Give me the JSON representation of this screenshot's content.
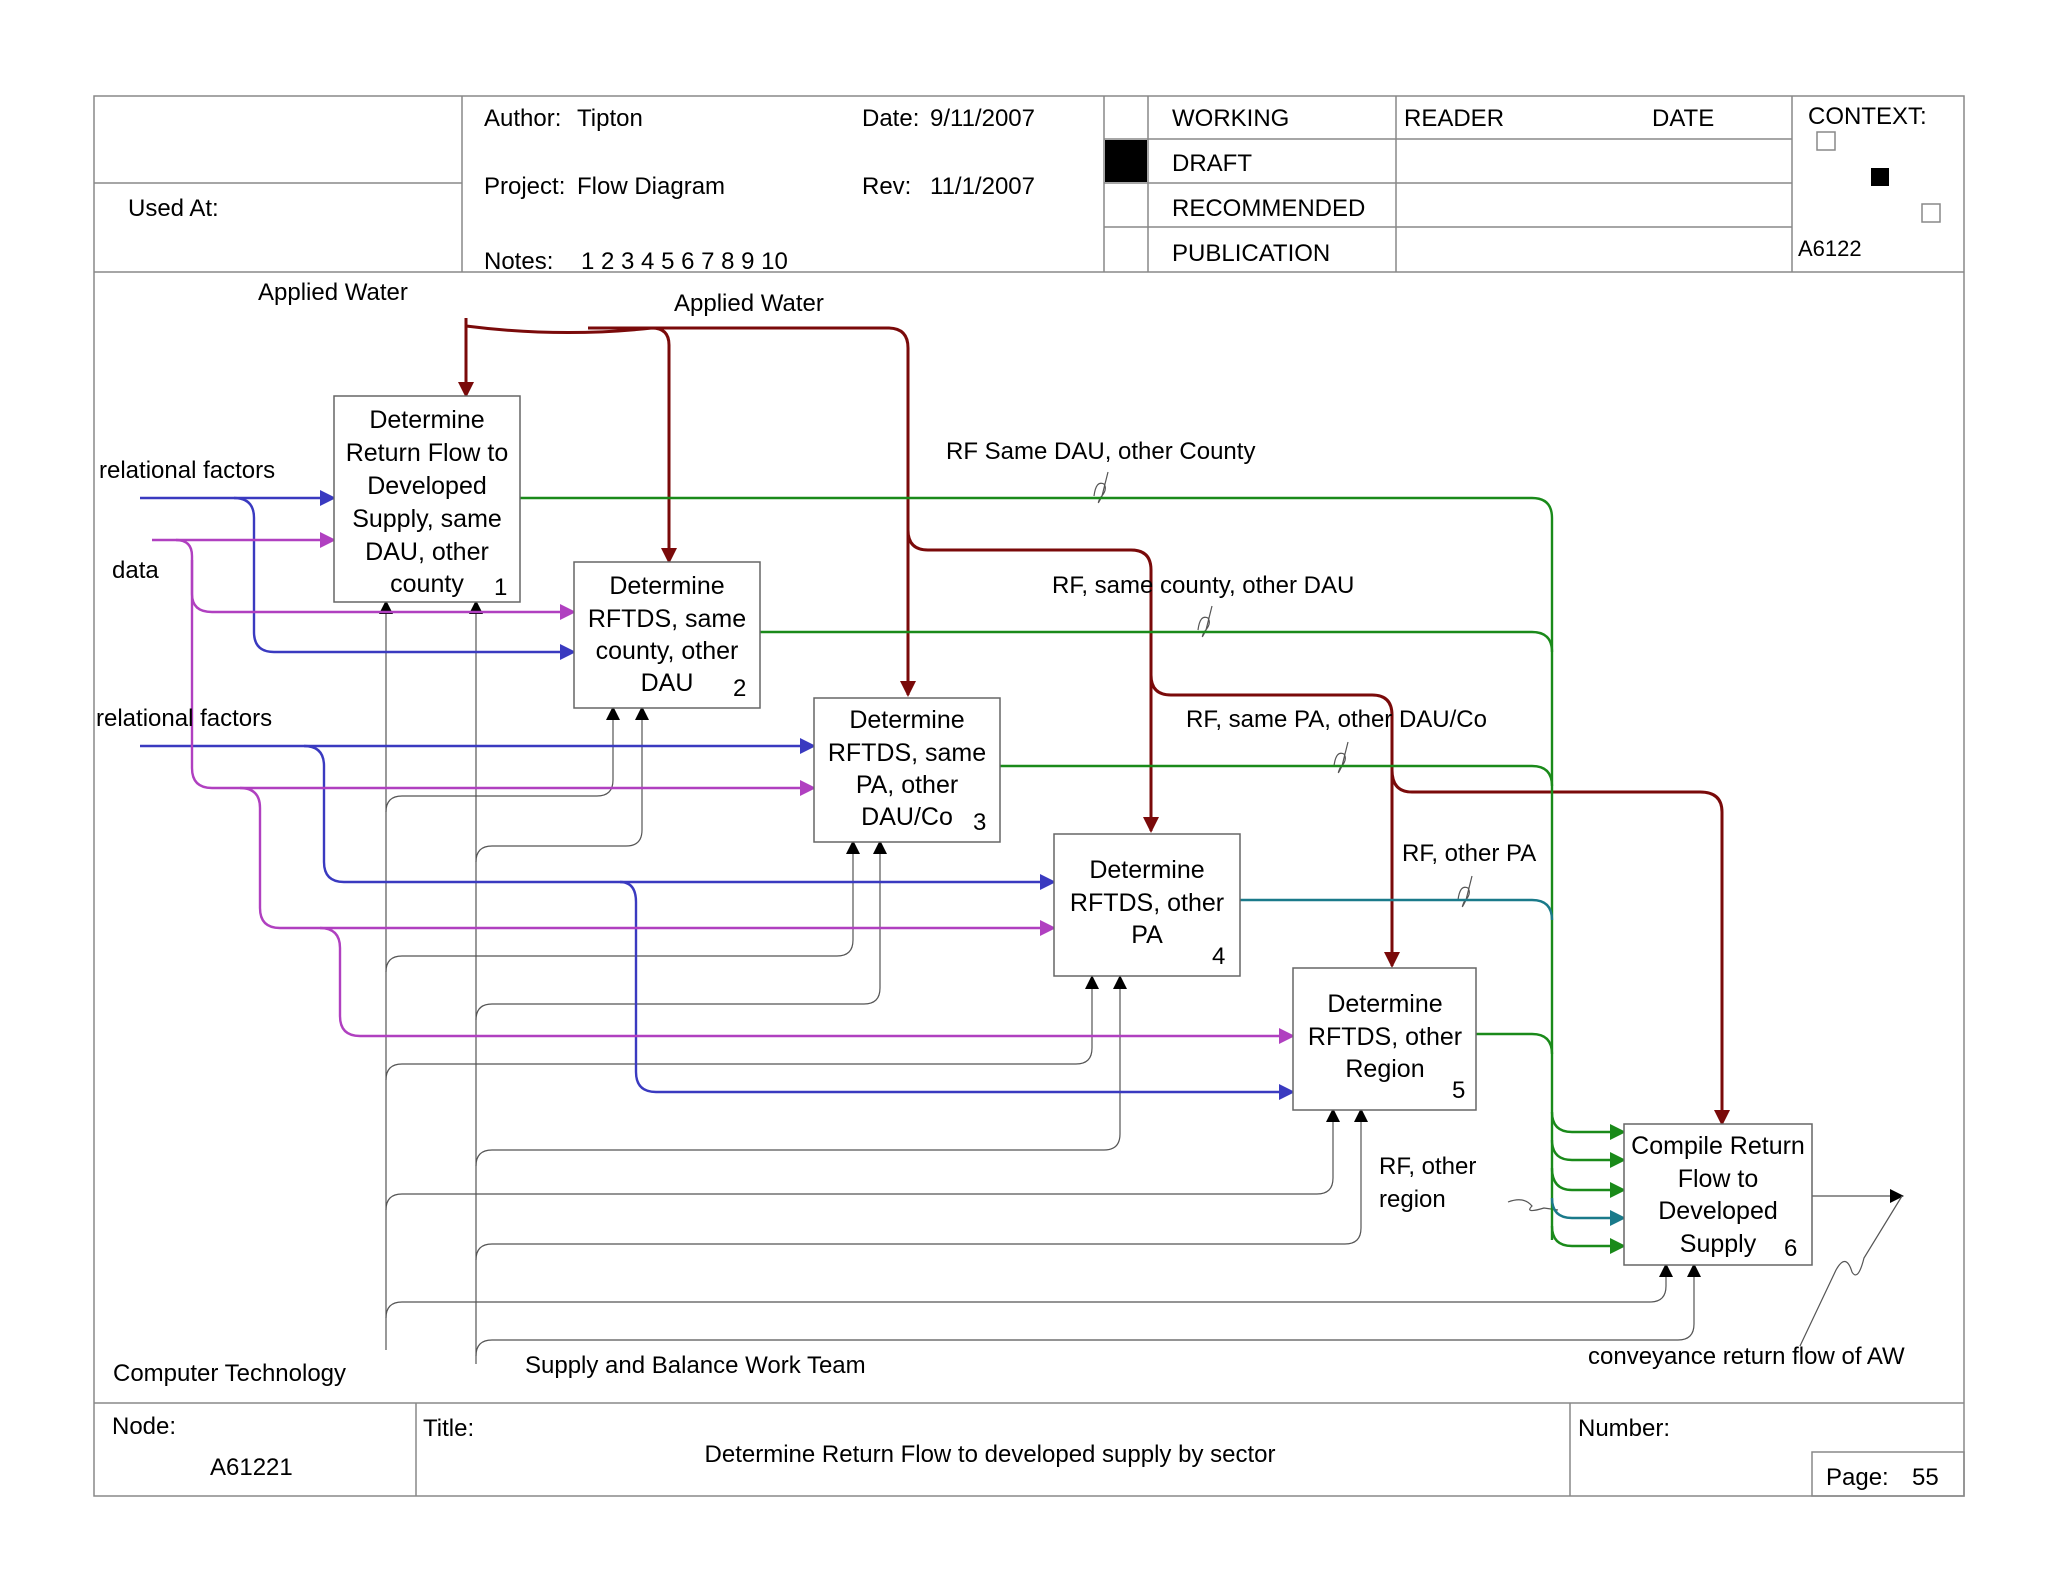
{
  "header": {
    "used_at": "Used At:",
    "author_label": "Author:",
    "author": "Tipton",
    "date_label": "Date:",
    "date": "9/11/2007",
    "project_label": "Project:",
    "project": "Flow Diagram",
    "rev_label": "Rev:",
    "rev": "11/1/2007",
    "notes_label": "Notes:",
    "notes": "1 2 3 4 5 6 7 8 9 10",
    "status": [
      "WORKING",
      "DRAFT",
      "RECOMMENDED",
      "PUBLICATION"
    ],
    "reader": "READER",
    "date_col": "DATE",
    "context": "CONTEXT:",
    "context_node": "A6122"
  },
  "footer": {
    "node_label": "Node:",
    "node": "A61221",
    "title_label": "Title:",
    "title": "Determine Return Flow to developed supply by sector",
    "number_label": "Number:",
    "page_label": "Page:",
    "page": "55"
  },
  "boxes": [
    {
      "lines": [
        "Determine",
        "Return Flow to",
        "Developed",
        "Supply, same",
        "DAU, other",
        "county"
      ],
      "num": "1"
    },
    {
      "lines": [
        "Determine",
        "RFTDS, same",
        "county, other",
        "DAU"
      ],
      "num": "2"
    },
    {
      "lines": [
        "Determine",
        "RFTDS, same",
        "PA, other",
        "DAU/Co"
      ],
      "num": "3"
    },
    {
      "lines": [
        "Determine",
        "RFTDS, other",
        "PA"
      ],
      "num": "4"
    },
    {
      "lines": [
        "Determine",
        "RFTDS, other",
        "Region"
      ],
      "num": "5"
    },
    {
      "lines": [
        "Compile Return",
        "Flow to",
        "Developed",
        "Supply"
      ],
      "num": "6"
    }
  ],
  "labels": {
    "applied_water_1": "Applied Water",
    "applied_water_2": "Applied Water",
    "relational_factors_1": "relational factors",
    "data": "data",
    "relational_factors_2": "relational factors",
    "rf_same_dau_other_county": "RF Same DAU, other County",
    "rf_same_county_other_dau": "RF, same county, other DAU",
    "rf_same_pa_other_dau_co": "RF, same PA, other DAU/Co",
    "rf_other_pa": "RF, other PA",
    "rf_other_region_1": "RF, other",
    "rf_other_region_2": "region",
    "conveyance": "conveyance return flow of AW",
    "computer_technology": "Computer Technology",
    "supply_balance": "Supply and Balance Work Team"
  },
  "colors": {
    "control": "#7a0a0a",
    "relational": "#3a3ac0",
    "data": "#b040c0",
    "output": "#1a8a1a",
    "output_teal": "#1a7a8a",
    "mechanism": "#555555"
  }
}
